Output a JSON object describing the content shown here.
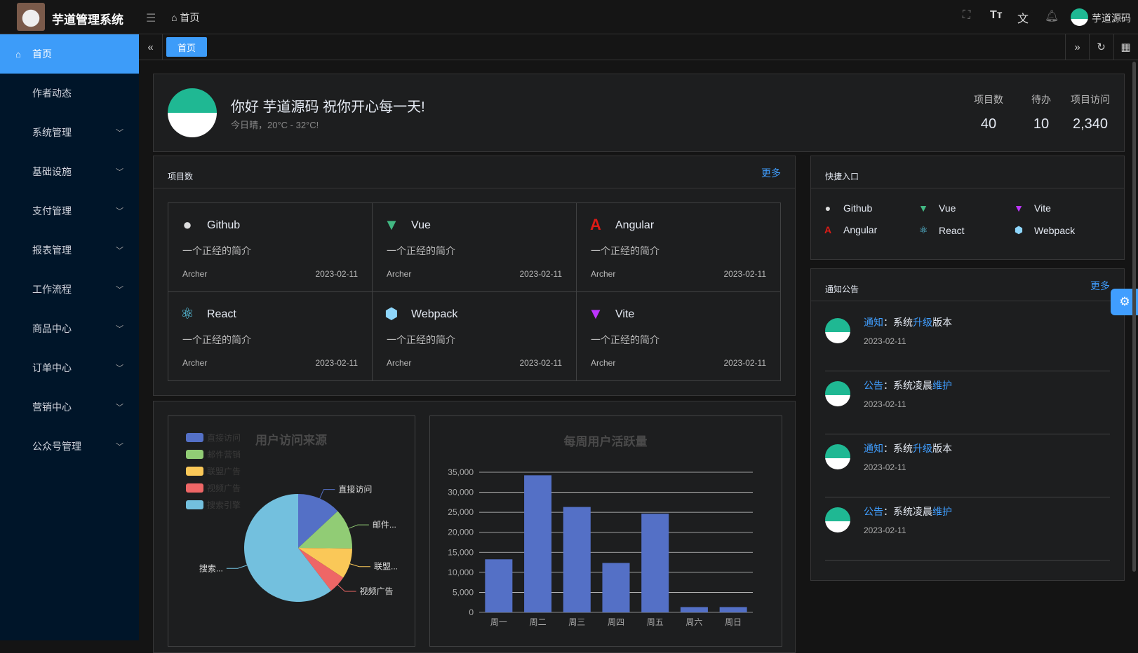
{
  "header": {
    "app_title": "芋道管理系统",
    "breadcrumb": "首页",
    "user_name": "芋道源码",
    "icons": [
      "menu-fold-icon",
      "home-icon",
      "fullscreen-icon",
      "font-size-icon",
      "translate-icon",
      "bell-icon"
    ]
  },
  "sidebar": {
    "items": [
      {
        "label": "首页",
        "active": true
      },
      {
        "label": "作者动态"
      },
      {
        "label": "系统管理",
        "expandable": true
      },
      {
        "label": "基础设施",
        "expandable": true
      },
      {
        "label": "支付管理",
        "expandable": true
      },
      {
        "label": "报表管理",
        "expandable": true
      },
      {
        "label": "工作流程",
        "expandable": true
      },
      {
        "label": "商品中心",
        "expandable": true
      },
      {
        "label": "订单中心",
        "expandable": true
      },
      {
        "label": "营销中心",
        "expandable": true
      },
      {
        "label": "公众号管理",
        "expandable": true
      }
    ]
  },
  "tabs": {
    "active": "首页"
  },
  "welcome": {
    "greeting": "你好 芋道源码 祝你开心每一天!",
    "weather": "今日晴，20°C - 32°C!",
    "stats": [
      {
        "label": "项目数",
        "value": "40"
      },
      {
        "label": "待办",
        "value": "10"
      },
      {
        "label": "项目访问",
        "value": "2,340"
      }
    ]
  },
  "projects": {
    "title": "项目数",
    "more": "更多",
    "items": [
      {
        "name": "Github",
        "desc": "一个正经的简介",
        "author": "Archer",
        "date": "2023-02-11",
        "icon": "github-icon"
      },
      {
        "name": "Vue",
        "desc": "一个正经的简介",
        "author": "Archer",
        "date": "2023-02-11",
        "icon": "vue-icon"
      },
      {
        "name": "Angular",
        "desc": "一个正经的简介",
        "author": "Archer",
        "date": "2023-02-11",
        "icon": "angular-icon"
      },
      {
        "name": "React",
        "desc": "一个正经的简介",
        "author": "Archer",
        "date": "2023-02-11",
        "icon": "react-icon"
      },
      {
        "name": "Webpack",
        "desc": "一个正经的简介",
        "author": "Archer",
        "date": "2023-02-11",
        "icon": "webpack-icon"
      },
      {
        "name": "Vite",
        "desc": "一个正经的简介",
        "author": "Archer",
        "date": "2023-02-11",
        "icon": "vite-icon"
      }
    ]
  },
  "shortcuts": {
    "title": "快捷入口",
    "items": [
      {
        "name": "Github",
        "icon": "github-icon"
      },
      {
        "name": "Vue",
        "icon": "vue-icon"
      },
      {
        "name": "Vite",
        "icon": "vite-icon"
      },
      {
        "name": "Angular",
        "icon": "angular-icon"
      },
      {
        "name": "React",
        "icon": "react-icon"
      },
      {
        "name": "Webpack",
        "icon": "webpack-icon"
      }
    ]
  },
  "notices": {
    "title": "通知公告",
    "more": "更多",
    "items": [
      {
        "type": "通知",
        "sep": "：",
        "pre": "系统",
        "hl": "升级",
        "post": "版本",
        "date": "2023-02-11"
      },
      {
        "type": "公告",
        "sep": "：",
        "pre": "系统凌晨",
        "hl": "维护",
        "post": "",
        "date": "2023-02-11"
      },
      {
        "type": "通知",
        "sep": "：",
        "pre": "系统",
        "hl": "升级",
        "post": "版本",
        "date": "2023-02-11"
      },
      {
        "type": "公告",
        "sep": "：",
        "pre": "系统凌晨",
        "hl": "维护",
        "post": "",
        "date": "2023-02-11"
      }
    ]
  },
  "chart_data": [
    {
      "type": "pie",
      "title": "用户访问来源",
      "legend_position": "top-left",
      "categories": [
        "直接访问",
        "邮件营销",
        "联盟广告",
        "视频广告",
        "搜索引擎"
      ],
      "slice_labels": [
        "直接访问",
        "邮件...",
        "联盟...",
        "视频广告",
        "搜索..."
      ],
      "values": [
        335,
        310,
        234,
        135,
        1548
      ],
      "colors": [
        "#5470c6",
        "#91cc75",
        "#fac858",
        "#ee6666",
        "#73c0de"
      ]
    },
    {
      "type": "bar",
      "title": "每周用户活跃量",
      "categories": [
        "周一",
        "周二",
        "周三",
        "周四",
        "周五",
        "周六",
        "周日"
      ],
      "values": [
        13253,
        34235,
        26321,
        12340,
        24643,
        1322,
        1324
      ],
      "ylim": [
        0,
        35000
      ],
      "yticks": [
        "0",
        "5,000",
        "10,000",
        "15,000",
        "20,000",
        "25,000",
        "30,000",
        "35,000"
      ],
      "grid": true,
      "color": "#5470c6"
    }
  ]
}
